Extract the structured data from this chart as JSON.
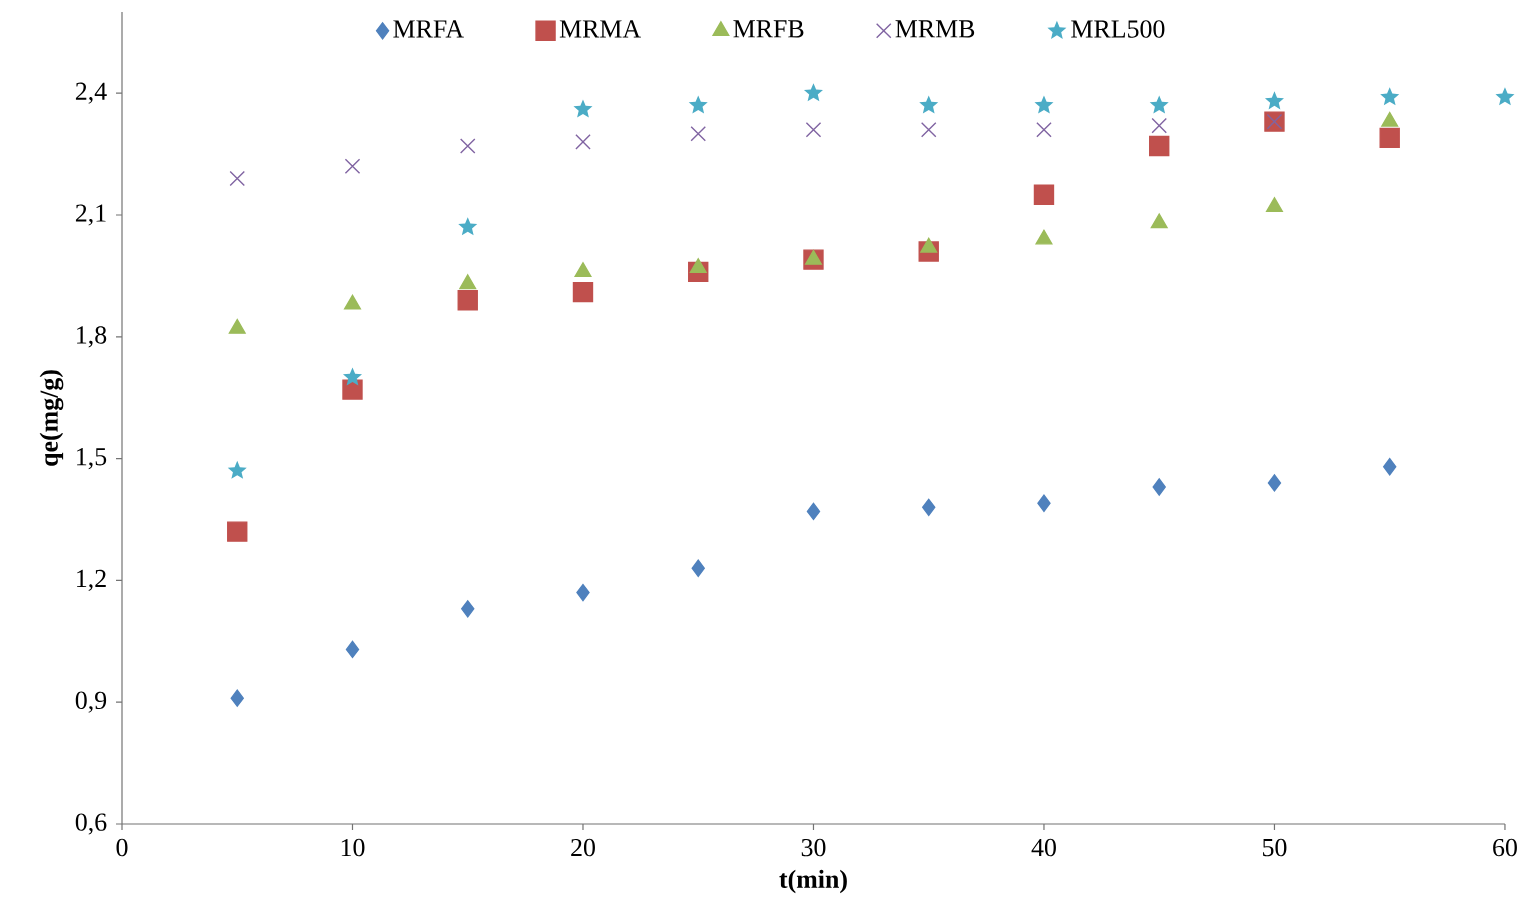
{
  "chart_data": {
    "type": "scatter",
    "xlabel": "t(min)",
    "ylabel": "qe(mg/g)",
    "x": [
      5,
      10,
      15,
      20,
      25,
      30,
      35,
      40,
      45,
      50,
      55,
      60
    ],
    "series": [
      {
        "name": "MRFA",
        "color": "#4f81bd",
        "marker": "diamond",
        "values": [
          0.91,
          1.03,
          1.13,
          1.17,
          1.23,
          1.37,
          1.38,
          1.39,
          1.43,
          1.44,
          1.48,
          null
        ]
      },
      {
        "name": "MRMA",
        "color": "#c0504d",
        "marker": "square",
        "values": [
          1.32,
          1.67,
          1.89,
          1.91,
          1.96,
          1.99,
          2.01,
          2.15,
          2.27,
          2.33,
          2.29,
          null
        ]
      },
      {
        "name": "MRFB",
        "color": "#9bbb59",
        "marker": "triangle",
        "values": [
          1.82,
          1.88,
          1.93,
          1.96,
          1.97,
          1.99,
          2.02,
          2.04,
          2.08,
          2.12,
          2.33,
          null
        ]
      },
      {
        "name": "MRMB",
        "color": "#8064a2",
        "marker": "cross",
        "values": [
          2.19,
          2.22,
          2.27,
          2.28,
          2.3,
          2.31,
          2.31,
          2.31,
          2.32,
          2.33,
          null,
          null
        ]
      },
      {
        "name": "MRL500",
        "color": "#4bacc6",
        "marker": "star",
        "values": [
          1.47,
          1.7,
          2.07,
          2.36,
          2.37,
          2.4,
          2.37,
          2.37,
          2.37,
          2.38,
          2.39,
          2.39
        ]
      }
    ],
    "xlim": [
      0,
      60
    ],
    "ylim": [
      0.6,
      2.6
    ],
    "xticks": [
      0,
      10,
      20,
      30,
      40,
      50,
      60
    ],
    "yticks": [
      {
        "value": 0.6,
        "label": "0,6"
      },
      {
        "value": 0.9,
        "label": "0,9"
      },
      {
        "value": 1.2,
        "label": "1,2"
      },
      {
        "value": 1.5,
        "label": "1,5"
      },
      {
        "value": 1.8,
        "label": "1,8"
      },
      {
        "value": 2.1,
        "label": "2,1"
      },
      {
        "value": 2.4,
        "label": "2,4"
      }
    ],
    "legend": "top",
    "grid": false
  }
}
